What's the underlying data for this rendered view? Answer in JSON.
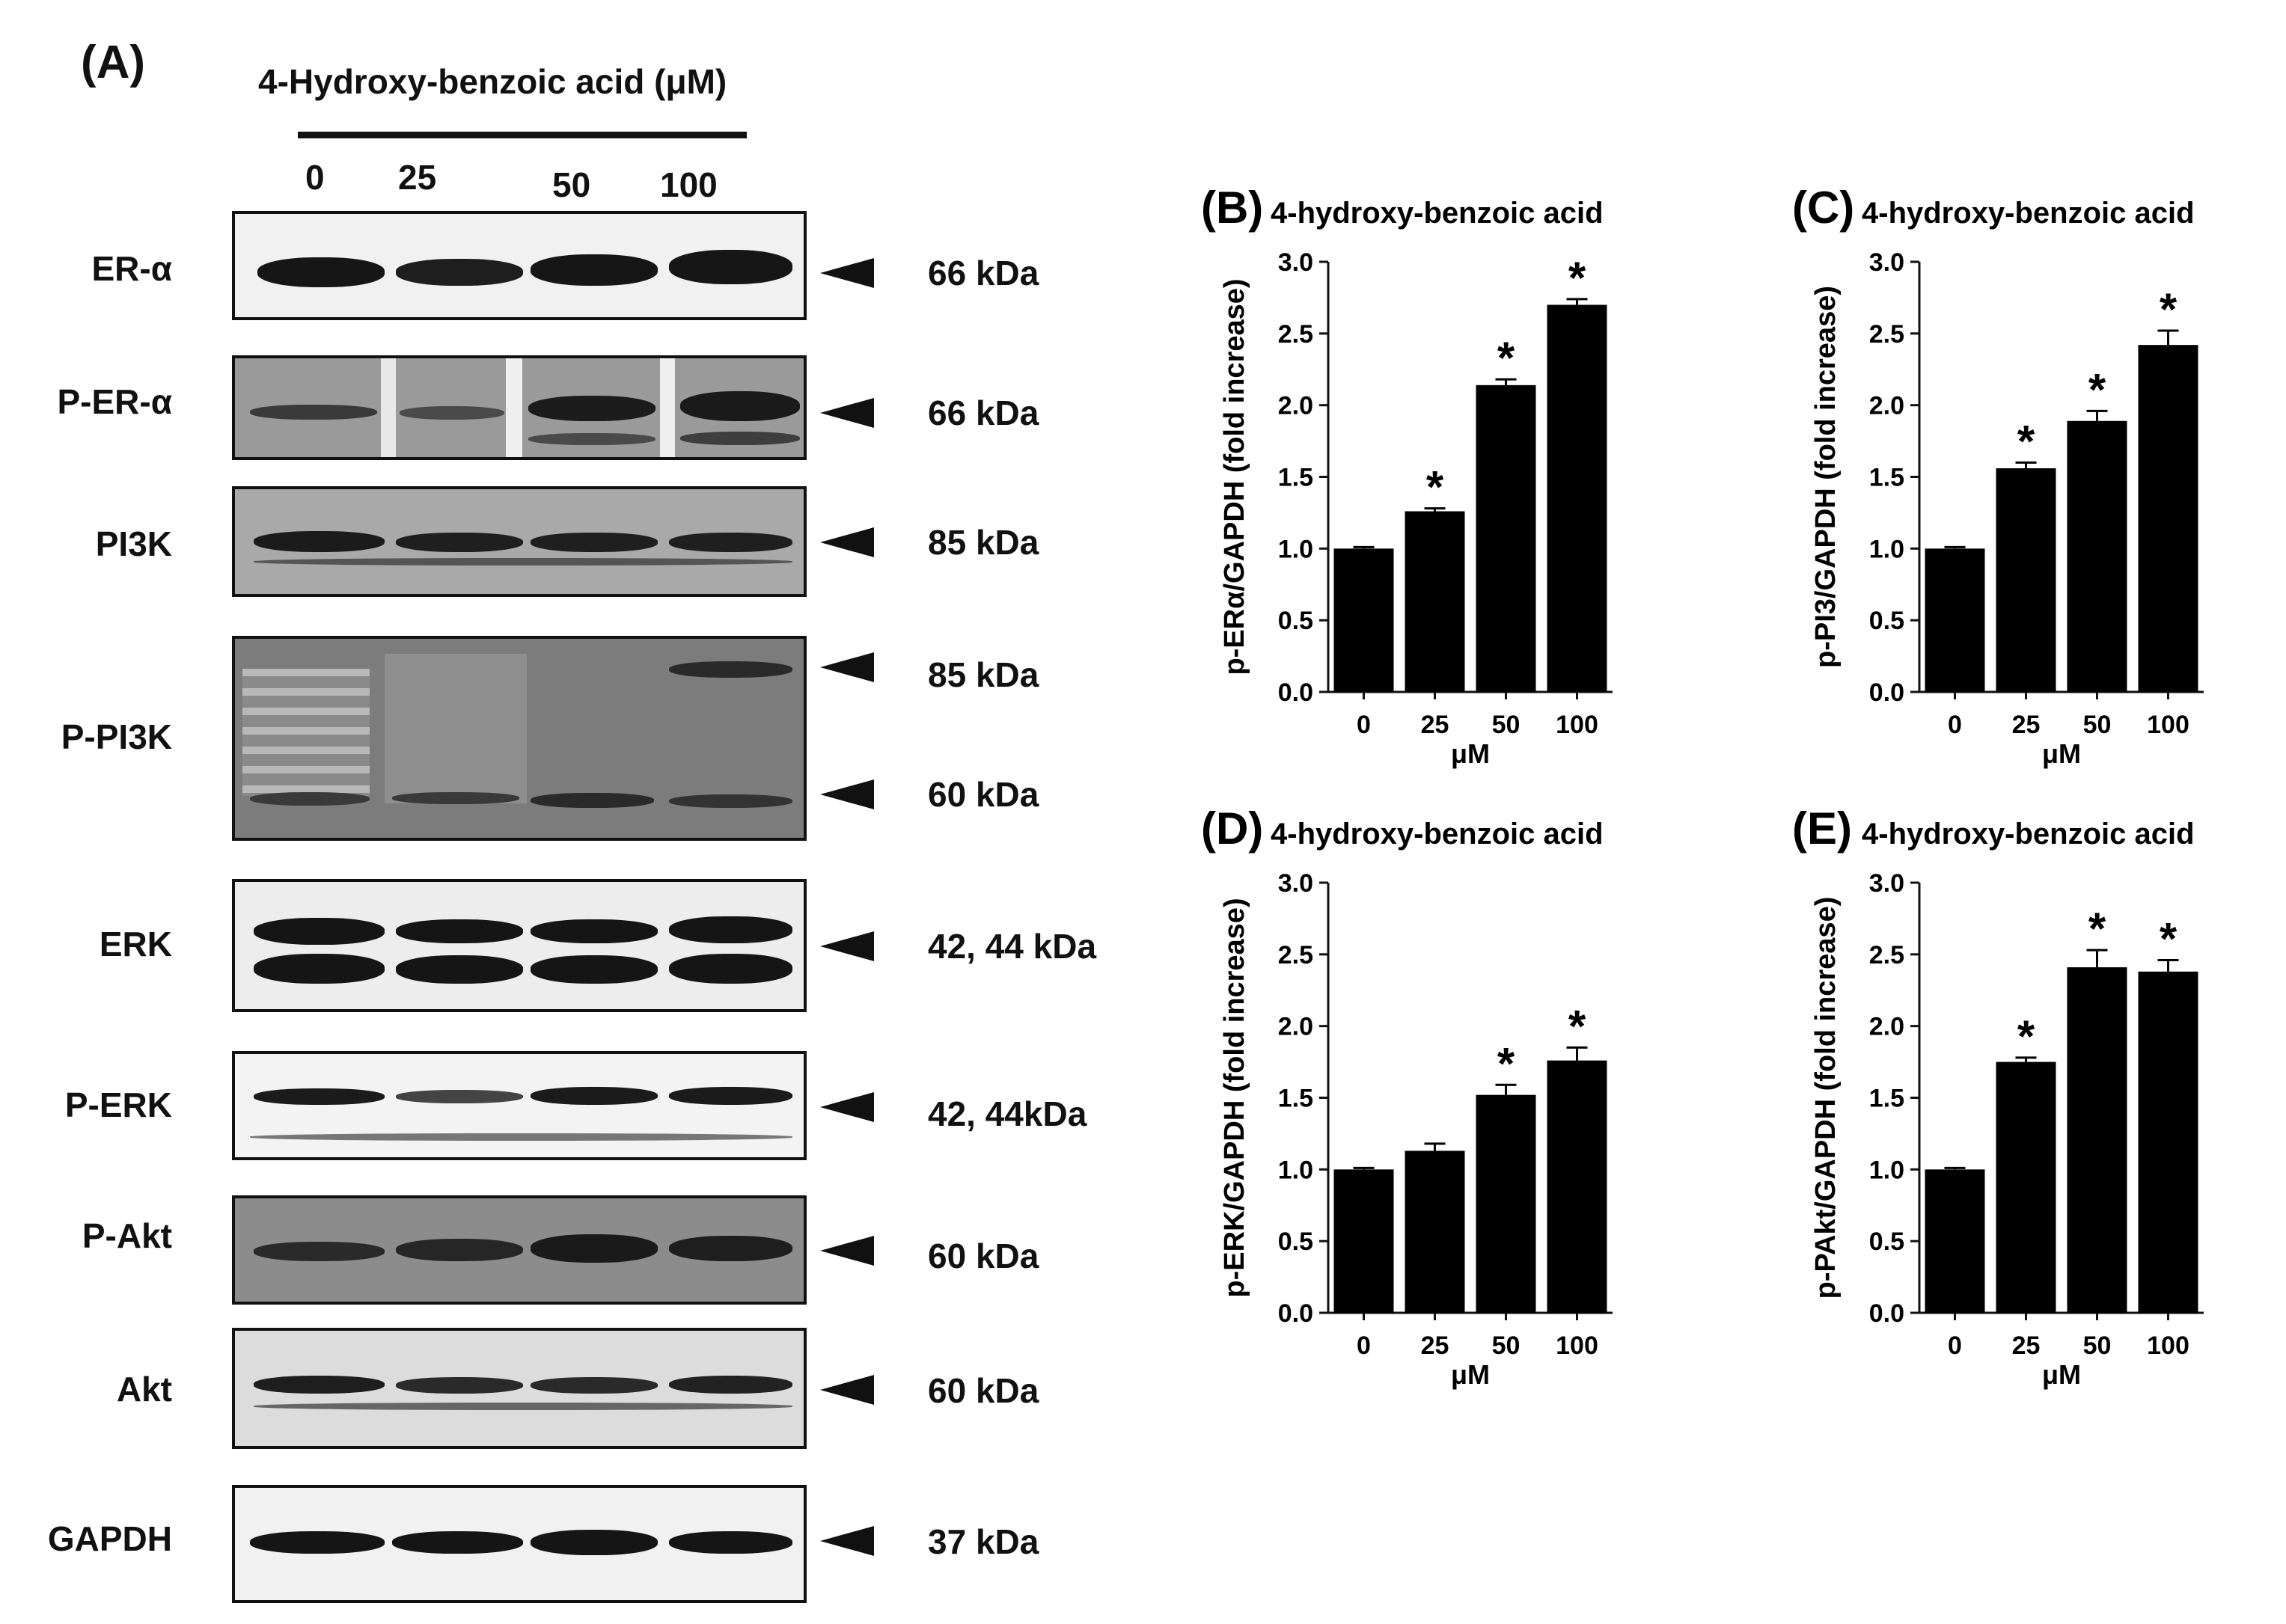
{
  "panel_a": {
    "letter": "(A)",
    "treatment_label": "4-Hydroxy-benzoic acid (μM)",
    "lanes": [
      "0",
      "25",
      "50",
      "100"
    ],
    "rows": [
      {
        "label": "ER-α",
        "kda": "66 kDa"
      },
      {
        "label": "P-ER-α",
        "kda": "66 kDa"
      },
      {
        "label": "PI3K",
        "kda": "85 kDa"
      },
      {
        "label": "P-PI3K",
        "kda": "85 kDa",
        "kda2": "60 kDa"
      },
      {
        "label": "ERK",
        "kda": "42, 44 kDa"
      },
      {
        "label": "P-ERK",
        "kda": "42, 44kDa"
      },
      {
        "label": "P-Akt",
        "kda": "60 kDa"
      },
      {
        "label": "Akt",
        "kda": "60 kDa"
      },
      {
        "label": "GAPDH",
        "kda": "37 kDa"
      }
    ]
  },
  "chart_data": [
    {
      "panel": "(B)",
      "type": "bar",
      "title": "4-hydroxy-benzoic acid",
      "xlabel": "μM",
      "ylabel": "p-ERα/GAPDH (fold increase)",
      "categories": [
        "0",
        "25",
        "50",
        "100"
      ],
      "values": [
        1.0,
        1.26,
        2.14,
        2.7
      ],
      "errors": [
        0.01,
        0.02,
        0.04,
        0.04
      ],
      "significant": [
        false,
        true,
        true,
        true
      ],
      "ylim": [
        0,
        3.0
      ],
      "yticks": [
        "0.0",
        "0.5",
        "1.0",
        "1.5",
        "2.0",
        "2.5",
        "3.0"
      ]
    },
    {
      "panel": "(C)",
      "type": "bar",
      "title": "4-hydroxy-benzoic acid",
      "xlabel": "μM",
      "ylabel": "p-PI3/GAPDH (fold increase)",
      "categories": [
        "0",
        "25",
        "50",
        "100"
      ],
      "values": [
        1.0,
        1.56,
        1.89,
        2.42
      ],
      "errors": [
        0.01,
        0.04,
        0.07,
        0.1
      ],
      "significant": [
        false,
        true,
        true,
        true
      ],
      "ylim": [
        0,
        3.0
      ],
      "yticks": [
        "0.0",
        "0.5",
        "1.0",
        "1.5",
        "2.0",
        "2.5",
        "3.0"
      ]
    },
    {
      "panel": "(D)",
      "type": "bar",
      "title": "4-hydroxy-benzoic acid",
      "xlabel": "μM",
      "ylabel": "p-ERK/GAPDH (fold increase)",
      "categories": [
        "0",
        "25",
        "50",
        "100"
      ],
      "values": [
        1.0,
        1.13,
        1.52,
        1.76
      ],
      "errors": [
        0.01,
        0.05,
        0.07,
        0.09
      ],
      "significant": [
        false,
        false,
        true,
        true
      ],
      "ylim": [
        0,
        3.0
      ],
      "yticks": [
        "0.0",
        "0.5",
        "1.0",
        "1.5",
        "2.0",
        "2.5",
        "3.0"
      ]
    },
    {
      "panel": "(E)",
      "type": "bar",
      "title": "4-hydroxy-benzoic acid",
      "xlabel": "μM",
      "ylabel": "p-PAkt/GAPDH (fold increase)",
      "categories": [
        "0",
        "25",
        "50",
        "100"
      ],
      "values": [
        1.0,
        1.75,
        2.41,
        2.38
      ],
      "errors": [
        0.01,
        0.03,
        0.12,
        0.08
      ],
      "significant": [
        false,
        true,
        true,
        true
      ],
      "ylim": [
        0,
        3.0
      ],
      "yticks": [
        "0.0",
        "0.5",
        "1.0",
        "1.5",
        "2.0",
        "2.5",
        "3.0"
      ]
    }
  ]
}
